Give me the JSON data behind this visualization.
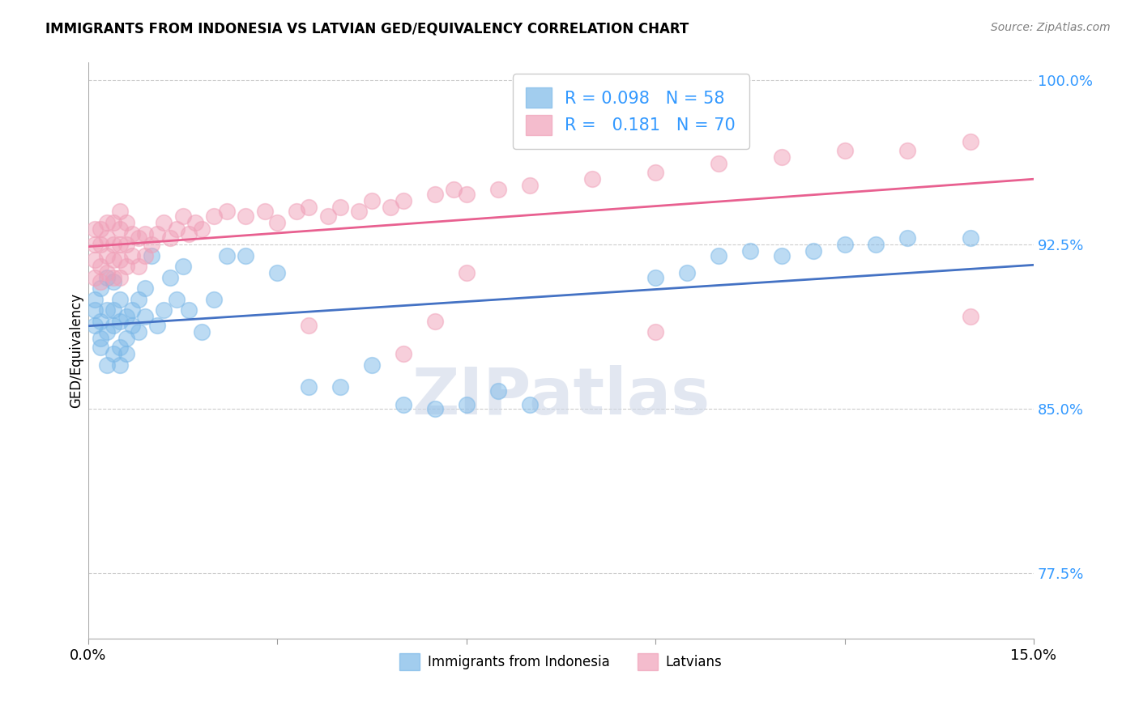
{
  "title": "IMMIGRANTS FROM INDONESIA VS LATVIAN GED/EQUIVALENCY CORRELATION CHART",
  "source": "Source: ZipAtlas.com",
  "ylabel_label": "GED/Equivalency",
  "legend_labels": [
    "Immigrants from Indonesia",
    "Latvians"
  ],
  "r_indonesia": 0.098,
  "n_indonesia": 58,
  "r_latvian": 0.181,
  "n_latvian": 70,
  "blue_color": "#7BB8E8",
  "pink_color": "#F0A0B8",
  "blue_line_color": "#4472C4",
  "pink_line_color": "#E86090",
  "indonesia_x": [
    0.001,
    0.001,
    0.001,
    0.002,
    0.002,
    0.002,
    0.002,
    0.003,
    0.003,
    0.003,
    0.003,
    0.004,
    0.004,
    0.004,
    0.004,
    0.005,
    0.005,
    0.005,
    0.005,
    0.006,
    0.006,
    0.006,
    0.007,
    0.007,
    0.008,
    0.008,
    0.009,
    0.009,
    0.01,
    0.011,
    0.012,
    0.013,
    0.014,
    0.015,
    0.016,
    0.018,
    0.02,
    0.022,
    0.025,
    0.03,
    0.035,
    0.04,
    0.045,
    0.05,
    0.055,
    0.06,
    0.065,
    0.07,
    0.09,
    0.095,
    0.1,
    0.105,
    0.11,
    0.115,
    0.12,
    0.125,
    0.13,
    0.14
  ],
  "indonesia_y": [
    0.888,
    0.895,
    0.9,
    0.878,
    0.882,
    0.89,
    0.905,
    0.87,
    0.885,
    0.895,
    0.91,
    0.875,
    0.888,
    0.895,
    0.908,
    0.87,
    0.878,
    0.89,
    0.9,
    0.875,
    0.882,
    0.892,
    0.888,
    0.895,
    0.885,
    0.9,
    0.892,
    0.905,
    0.92,
    0.888,
    0.895,
    0.91,
    0.9,
    0.915,
    0.895,
    0.885,
    0.9,
    0.92,
    0.92,
    0.912,
    0.86,
    0.86,
    0.87,
    0.852,
    0.85,
    0.852,
    0.858,
    0.852,
    0.91,
    0.912,
    0.92,
    0.922,
    0.92,
    0.922,
    0.925,
    0.925,
    0.928,
    0.928
  ],
  "latvian_x": [
    0.001,
    0.001,
    0.001,
    0.001,
    0.002,
    0.002,
    0.002,
    0.002,
    0.003,
    0.003,
    0.003,
    0.003,
    0.004,
    0.004,
    0.004,
    0.004,
    0.005,
    0.005,
    0.005,
    0.005,
    0.005,
    0.006,
    0.006,
    0.006,
    0.007,
    0.007,
    0.008,
    0.008,
    0.009,
    0.009,
    0.01,
    0.011,
    0.012,
    0.013,
    0.014,
    0.015,
    0.016,
    0.017,
    0.018,
    0.02,
    0.022,
    0.025,
    0.028,
    0.03,
    0.033,
    0.035,
    0.038,
    0.04,
    0.043,
    0.045,
    0.048,
    0.05,
    0.055,
    0.058,
    0.06,
    0.065,
    0.07,
    0.08,
    0.09,
    0.1,
    0.11,
    0.12,
    0.13,
    0.14,
    0.035,
    0.05,
    0.055,
    0.06,
    0.09,
    0.14
  ],
  "latvian_y": [
    0.91,
    0.918,
    0.925,
    0.932,
    0.908,
    0.915,
    0.925,
    0.932,
    0.912,
    0.92,
    0.928,
    0.935,
    0.91,
    0.918,
    0.925,
    0.935,
    0.91,
    0.918,
    0.925,
    0.932,
    0.94,
    0.915,
    0.925,
    0.935,
    0.92,
    0.93,
    0.915,
    0.928,
    0.92,
    0.93,
    0.925,
    0.93,
    0.935,
    0.928,
    0.932,
    0.938,
    0.93,
    0.935,
    0.932,
    0.938,
    0.94,
    0.938,
    0.94,
    0.935,
    0.94,
    0.942,
    0.938,
    0.942,
    0.94,
    0.945,
    0.942,
    0.945,
    0.948,
    0.95,
    0.948,
    0.95,
    0.952,
    0.955,
    0.958,
    0.962,
    0.965,
    0.968,
    0.968,
    0.972,
    0.888,
    0.875,
    0.89,
    0.912,
    0.885,
    0.892
  ],
  "xmin": 0.0,
  "xmax": 0.15,
  "ymin": 0.745,
  "ymax": 1.008,
  "ytick_values": [
    0.775,
    0.85,
    0.925,
    1.0
  ],
  "ytick_labels": [
    "77.5%",
    "85.0%",
    "92.5%",
    "100.0%"
  ],
  "xtick_values": [
    0.0,
    0.03,
    0.06,
    0.09,
    0.12,
    0.15
  ],
  "xtick_labels": [
    "0.0%",
    "",
    "",
    "",
    "",
    "15.0%"
  ]
}
